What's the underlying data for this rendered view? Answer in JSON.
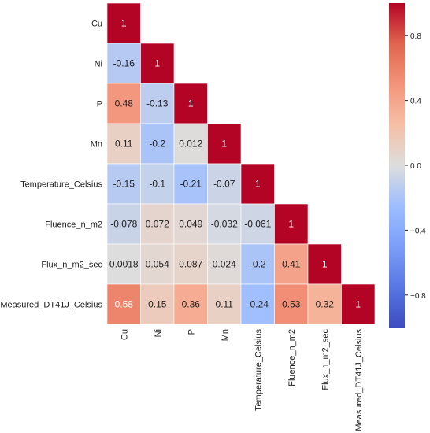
{
  "chart_data": {
    "type": "heatmap",
    "title": "",
    "variables": [
      "Cu",
      "Ni",
      "P",
      "Mn",
      "Temperature_Celsius",
      "Fluence_n_m2",
      "Flux_n_m2_sec",
      "Measured_DT41J_Celsius"
    ],
    "lower_triangle": [
      [
        "1"
      ],
      [
        "-0.16",
        "1"
      ],
      [
        "0.48",
        "-0.13",
        "1"
      ],
      [
        "0.11",
        "-0.2",
        "0.012",
        "1"
      ],
      [
        "-0.15",
        "-0.1",
        "-0.21",
        "-0.07",
        "1"
      ],
      [
        "-0.078",
        "0.072",
        "0.049",
        "-0.032",
        "-0.061",
        "1"
      ],
      [
        "0.0018",
        "0.054",
        "0.087",
        "0.024",
        "-0.2",
        "0.41",
        "1"
      ],
      [
        "0.58",
        "0.15",
        "0.36",
        "0.11",
        "-0.24",
        "0.53",
        "0.32",
        "1"
      ]
    ],
    "masked": "upper triangle",
    "colorbar": {
      "colormap": "coolwarm",
      "range": [
        -1,
        1
      ],
      "ticks": [
        "0.8",
        "0.4",
        "0.0",
        "−0.4",
        "−0.8"
      ],
      "tick_values": [
        0.8,
        0.4,
        0.0,
        -0.4,
        -0.8
      ]
    },
    "grid": false,
    "legend": "right colorbar"
  }
}
